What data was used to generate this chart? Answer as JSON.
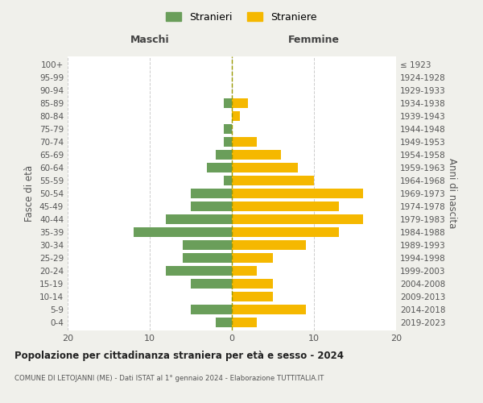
{
  "age_groups": [
    "100+",
    "95-99",
    "90-94",
    "85-89",
    "80-84",
    "75-79",
    "70-74",
    "65-69",
    "60-64",
    "55-59",
    "50-54",
    "45-49",
    "40-44",
    "35-39",
    "30-34",
    "25-29",
    "20-24",
    "15-19",
    "10-14",
    "5-9",
    "0-4"
  ],
  "birth_years": [
    "≤ 1923",
    "1924-1928",
    "1929-1933",
    "1934-1938",
    "1939-1943",
    "1944-1948",
    "1949-1953",
    "1954-1958",
    "1959-1963",
    "1964-1968",
    "1969-1973",
    "1974-1978",
    "1979-1983",
    "1984-1988",
    "1989-1993",
    "1994-1998",
    "1999-2003",
    "2004-2008",
    "2009-2013",
    "2014-2018",
    "2019-2023"
  ],
  "maschi": [
    0,
    0,
    0,
    1,
    0,
    1,
    1,
    2,
    3,
    1,
    5,
    5,
    8,
    12,
    6,
    6,
    8,
    5,
    0,
    5,
    2
  ],
  "femmine": [
    0,
    0,
    0,
    2,
    1,
    0,
    3,
    6,
    8,
    10,
    16,
    13,
    16,
    13,
    9,
    5,
    3,
    5,
    5,
    9,
    3
  ],
  "maschi_color": "#6a9e5a",
  "femmine_color": "#f5b800",
  "background_color": "#f0f0eb",
  "plot_bg_color": "#ffffff",
  "grid_color": "#cccccc",
  "title_main": "Popolazione per cittadinanza straniera per età e sesso - 2024",
  "subtitle": "COMUNE DI LETOJANNI (ME) - Dati ISTAT al 1° gennaio 2024 - Elaborazione TUTTITALIA.IT",
  "ylabel_left": "Fasce di età",
  "ylabel_right": "Anni di nascita",
  "legend_maschi": "Stranieri",
  "legend_femmine": "Straniere",
  "xlim": 20,
  "maschi_header": "Maschi",
  "femmine_header": "Femmine"
}
